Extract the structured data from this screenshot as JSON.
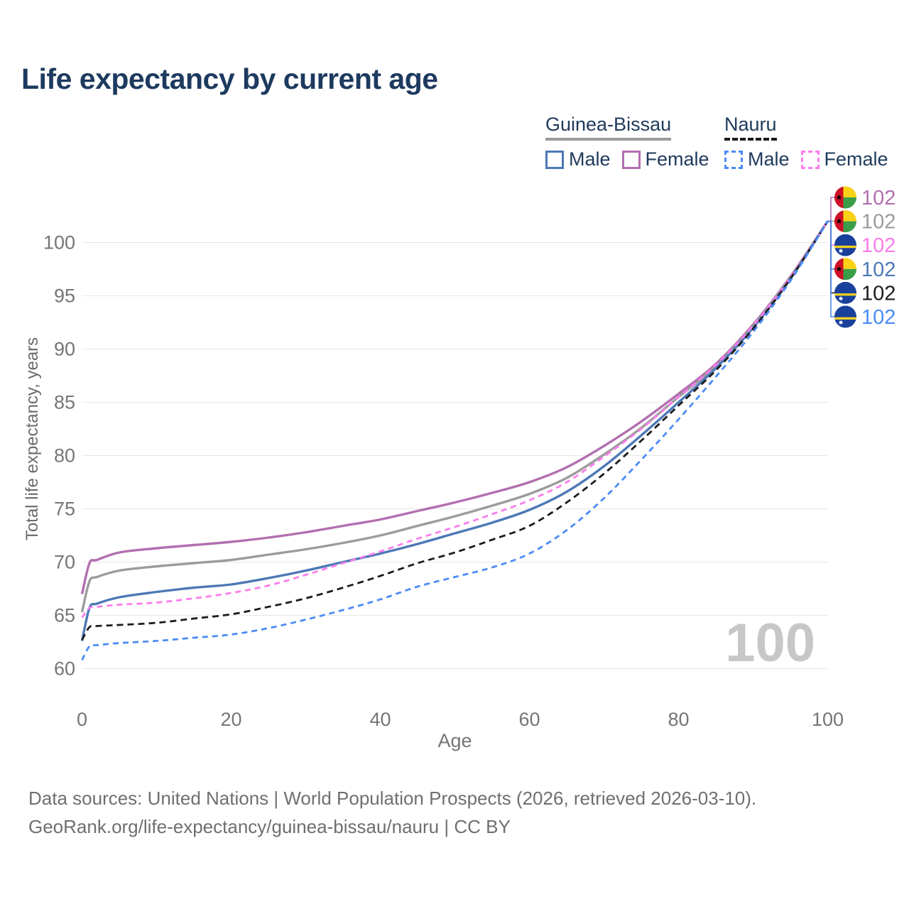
{
  "title": "Life expectancy by current age",
  "legend": {
    "groups": [
      {
        "name": "Guinea-Bissau",
        "underline_style": "solid",
        "underline_color": "#9c9c9c",
        "items": [
          {
            "label": "Male",
            "color": "#4d79b6",
            "dash": "solid"
          },
          {
            "label": "Female",
            "color": "#b26fb0",
            "dash": "solid"
          }
        ]
      },
      {
        "name": "Nauru",
        "underline_style": "dashed",
        "underline_color": "#1c1c1c",
        "items": [
          {
            "label": "Male",
            "color": "#4b8bf7",
            "dash": "dashed"
          },
          {
            "label": "Female",
            "color": "#fb7cec",
            "dash": "dashed"
          }
        ]
      }
    ]
  },
  "chart_data": {
    "type": "line",
    "title": "Life expectancy by current age",
    "xlabel": "Age",
    "ylabel": "Total life expectancy, years",
    "xlim": [
      0,
      100
    ],
    "ylim": [
      60,
      102.5
    ],
    "xticks": [
      0,
      20,
      40,
      60,
      80,
      100
    ],
    "yticks": [
      60,
      65,
      70,
      75,
      80,
      85,
      90,
      95,
      100
    ],
    "grid": "horizontal",
    "grid_color": "#e7e7e7",
    "axis_text_color": "#757575",
    "age_counter": "100",
    "series": [
      {
        "name": "Guinea-Bissau Female",
        "color": "#b26fb0",
        "dashed": false,
        "flag": "gw",
        "end_label": "102",
        "ages": [
          0,
          1,
          2,
          5,
          10,
          15,
          20,
          25,
          30,
          35,
          40,
          45,
          50,
          55,
          60,
          65,
          70,
          75,
          80,
          85,
          90,
          95,
          100
        ],
        "values": [
          67,
          69.9,
          70.2,
          70.9,
          71.3,
          71.6,
          71.9,
          72.3,
          72.8,
          73.4,
          74,
          74.8,
          75.6,
          76.5,
          77.5,
          78.9,
          80.9,
          83.2,
          85.8,
          88.6,
          92.3,
          96.8,
          102
        ]
      },
      {
        "name": "Guinea-Bissau",
        "color": "#9c9c9c",
        "dashed": false,
        "flag": "gw",
        "end_label": "102",
        "ages": [
          0,
          1,
          2,
          5,
          10,
          15,
          20,
          25,
          30,
          35,
          40,
          45,
          50,
          55,
          60,
          65,
          70,
          75,
          80,
          85,
          90,
          95,
          100
        ],
        "values": [
          65.3,
          68.2,
          68.6,
          69.2,
          69.6,
          69.9,
          70.2,
          70.7,
          71.2,
          71.8,
          72.5,
          73.4,
          74.3,
          75.3,
          76.4,
          77.9,
          80.1,
          82.6,
          85.5,
          88.4,
          92.2,
          96.7,
          102
        ]
      },
      {
        "name": "Nauru Female",
        "color": "#fb7cec",
        "dashed": true,
        "flag": "nr",
        "end_label": "102",
        "ages": [
          0,
          1,
          2,
          5,
          10,
          15,
          20,
          25,
          30,
          35,
          40,
          45,
          50,
          55,
          60,
          65,
          70,
          75,
          80,
          85,
          90,
          95,
          100
        ],
        "values": [
          64.8,
          65.7,
          65.8,
          66,
          66.2,
          66.6,
          67.1,
          67.8,
          68.8,
          69.9,
          71,
          72.2,
          73.3,
          74.5,
          75.8,
          77.5,
          79.9,
          82.5,
          85.5,
          88.5,
          92.2,
          96.7,
          102
        ]
      },
      {
        "name": "Guinea-Bissau Male",
        "color": "#4d79b6",
        "dashed": false,
        "flag": "gw",
        "end_label": "102",
        "ages": [
          0,
          1,
          2,
          5,
          10,
          15,
          20,
          25,
          30,
          35,
          40,
          45,
          50,
          55,
          60,
          65,
          70,
          75,
          80,
          85,
          90,
          95,
          100
        ],
        "values": [
          62.6,
          65.7,
          66.1,
          66.7,
          67.2,
          67.6,
          67.9,
          68.5,
          69.2,
          70,
          70.8,
          71.7,
          72.7,
          73.7,
          74.9,
          76.6,
          79,
          81.9,
          85,
          88.2,
          92,
          96.6,
          102
        ]
      },
      {
        "name": "Nauru",
        "color": "#1c1c1c",
        "dashed": true,
        "flag": "nr",
        "end_label": "102",
        "ages": [
          0,
          1,
          2,
          5,
          10,
          15,
          20,
          25,
          30,
          35,
          40,
          45,
          50,
          55,
          60,
          65,
          70,
          75,
          80,
          85,
          90,
          95,
          100
        ],
        "values": [
          62.7,
          63.9,
          64,
          64.1,
          64.3,
          64.7,
          65.1,
          65.8,
          66.6,
          67.6,
          68.7,
          69.9,
          70.9,
          72.1,
          73.4,
          75.6,
          78.3,
          81.4,
          84.7,
          88,
          91.9,
          96.6,
          102
        ]
      },
      {
        "name": "Nauru Male",
        "color": "#4b8bf7",
        "dashed": true,
        "flag": "nr",
        "end_label": "102",
        "ages": [
          0,
          1,
          2,
          5,
          10,
          15,
          20,
          25,
          30,
          35,
          40,
          45,
          50,
          55,
          60,
          65,
          70,
          75,
          80,
          85,
          90,
          95,
          100
        ],
        "values": [
          60.8,
          62.1,
          62.2,
          62.4,
          62.6,
          62.9,
          63.2,
          63.8,
          64.6,
          65.5,
          66.5,
          67.7,
          68.6,
          69.5,
          70.8,
          73,
          76,
          79.6,
          83.4,
          87.4,
          91.6,
          96.4,
          102
        ]
      }
    ]
  },
  "footer": {
    "line1": "Data sources: United Nations | World Population Prospects (2026, retrieved 2026-03-10).",
    "line2": "GeoRank.org/life-expectancy/guinea-bissau/nauru | CC BY"
  }
}
